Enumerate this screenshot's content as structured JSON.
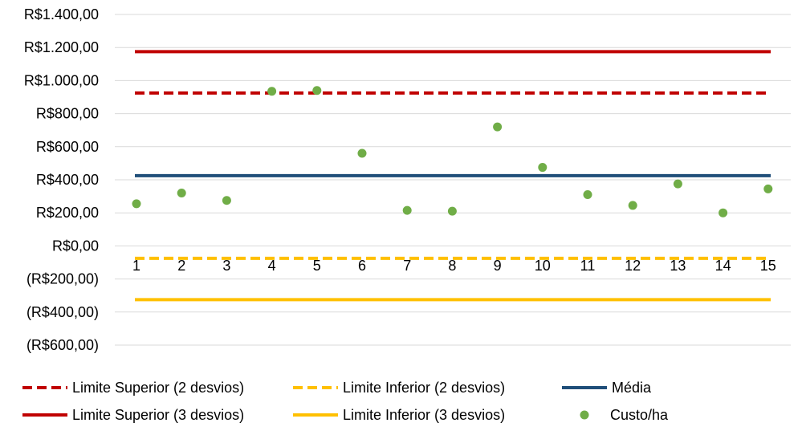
{
  "chart_data": {
    "type": "scatter",
    "title": "",
    "xlabel": "",
    "ylabel": "",
    "categories": [
      "1",
      "2",
      "3",
      "4",
      "5",
      "6",
      "7",
      "8",
      "9",
      "10",
      "11",
      "12",
      "13",
      "14",
      "15"
    ],
    "ylim": [
      -600,
      1400
    ],
    "ytick_values": [
      1400,
      1200,
      1000,
      800,
      600,
      400,
      200,
      0,
      -200,
      -400,
      -600
    ],
    "ytick_labels": [
      "R$1.400,00",
      "R$1.200,00",
      "R$1.000,00",
      "R$800,00",
      "R$600,00",
      "R$400,00",
      "R$200,00",
      "R$0,00",
      "(R$200,00)",
      "(R$400,00)",
      "(R$600,00)"
    ],
    "negative_label_color": "#FF0000",
    "grid": true,
    "legend_position": "bottom",
    "series": [
      {
        "name": "Limite Superior (2 desvios)",
        "kind": "line",
        "style": "dashed",
        "color": "#C00000",
        "values": [
          925,
          925,
          925,
          925,
          925,
          925,
          925,
          925,
          925,
          925,
          925,
          925,
          925,
          925,
          925
        ]
      },
      {
        "name": "Limite Inferior (2 desvios)",
        "kind": "line",
        "style": "dashed",
        "color": "#FFC000",
        "values": [
          -75,
          -75,
          -75,
          -75,
          -75,
          -75,
          -75,
          -75,
          -75,
          -75,
          -75,
          -75,
          -75,
          -75,
          -75
        ]
      },
      {
        "name": "Média",
        "kind": "line",
        "style": "solid",
        "color": "#1F4E79",
        "values": [
          425,
          425,
          425,
          425,
          425,
          425,
          425,
          425,
          425,
          425,
          425,
          425,
          425,
          425,
          425
        ]
      },
      {
        "name": "Limite Superior (3 desvios)",
        "kind": "line",
        "style": "solid",
        "color": "#C00000",
        "values": [
          1175,
          1175,
          1175,
          1175,
          1175,
          1175,
          1175,
          1175,
          1175,
          1175,
          1175,
          1175,
          1175,
          1175,
          1175
        ]
      },
      {
        "name": "Limite Inferior (3 desvios)",
        "kind": "line",
        "style": "solid",
        "color": "#FFC000",
        "values": [
          -325,
          -325,
          -325,
          -325,
          -325,
          -325,
          -325,
          -325,
          -325,
          -325,
          -325,
          -325,
          -325,
          -325,
          -325
        ]
      },
      {
        "name": "Custo/ha",
        "kind": "scatter",
        "color": "#70AD47",
        "values": [
          255,
          320,
          275,
          935,
          940,
          560,
          215,
          210,
          720,
          475,
          310,
          245,
          375,
          200,
          345
        ]
      }
    ]
  }
}
